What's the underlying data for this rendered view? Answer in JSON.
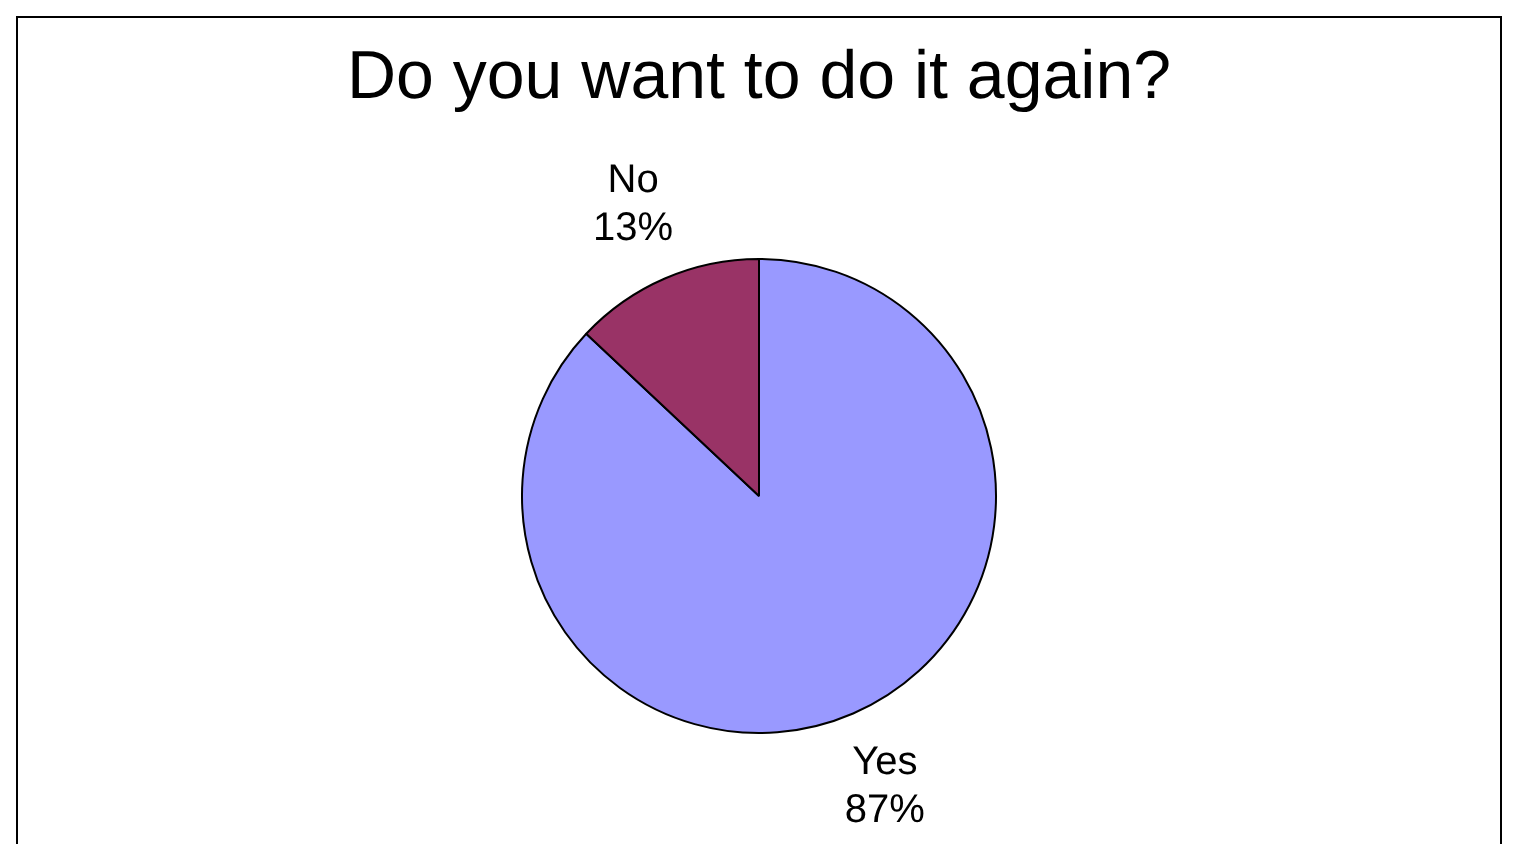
{
  "chart_data": {
    "type": "pie",
    "title": "Do you want to do it again?",
    "categories": [
      "Yes",
      "No"
    ],
    "values": [
      87,
      13
    ],
    "colors": [
      "#9999ff",
      "#993366"
    ],
    "value_labels": [
      "87%",
      "13%"
    ],
    "legend": false
  }
}
